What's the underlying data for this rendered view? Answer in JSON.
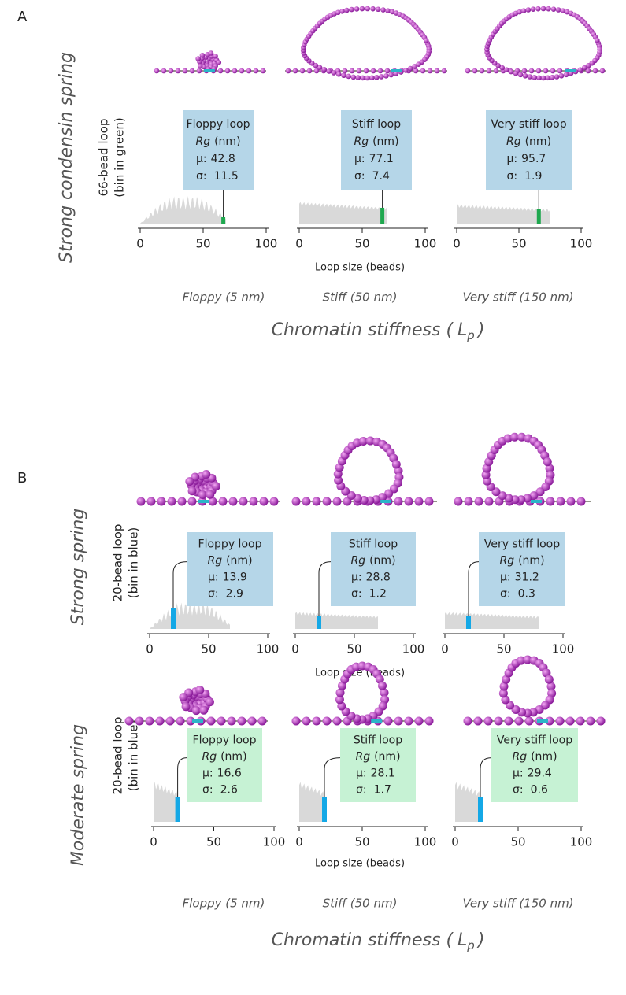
{
  "panels": [
    {
      "label": "A",
      "rows": [
        {
          "title": "Strong condensin spring",
          "y_label": [
            "66-bead loop",
            "(bin in green)"
          ],
          "x_label": "Loop size (beads)",
          "bin": 66,
          "bin_color": "#1fa84f",
          "box_color": "#b5d6e8",
          "columns": [
            {
              "box_title": "Floppy loop",
              "rg_symbol": "Rg",
              "rg_unit": "(nm)",
              "mu_symbol": "μ:",
              "mu": 42.8,
              "sigma_symbol": "σ:",
              "sigma": 11.5,
              "xlim": [
                0,
                100
              ],
              "xticks": [
                0,
                50,
                100
              ]
            },
            {
              "box_title": "Stiff loop",
              "rg_symbol": "Rg",
              "rg_unit": "(nm)",
              "mu_symbol": "μ:",
              "mu": 77.1,
              "sigma_symbol": "σ:",
              "sigma": 7.4,
              "xlim": [
                0,
                100
              ],
              "xticks": [
                0,
                50,
                100
              ]
            },
            {
              "box_title": "Very stiff loop",
              "rg_symbol": "Rg",
              "rg_unit": "(nm)",
              "mu_symbol": "μ:",
              "mu": 95.7,
              "sigma_symbol": "σ:",
              "sigma": 1.9,
              "xlim": [
                0,
                100
              ],
              "xticks": [
                0,
                50,
                100
              ]
            }
          ]
        }
      ],
      "stiffness_labels": [
        "Floppy (5 nm)",
        "Stiff (50 nm)",
        "Very stiff (150 nm)"
      ],
      "axis_title": {
        "text": "Chromatin stiffness (",
        "symbol": "L",
        "subscript": "p",
        "close": ")"
      }
    },
    {
      "label": "B",
      "rows": [
        {
          "title": "Strong spring",
          "y_label": [
            "20-bead loop",
            "(bin in blue)"
          ],
          "x_label": "Loop size (beads)",
          "bin": 20,
          "bin_color": "#14a8e6",
          "box_color": "#b5d6e8",
          "columns": [
            {
              "box_title": "Floppy loop",
              "rg_symbol": "Rg",
              "rg_unit": "(nm)",
              "mu_symbol": "μ:",
              "mu": 13.9,
              "sigma_symbol": "σ:",
              "sigma": 2.9,
              "xlim": [
                0,
                100
              ],
              "xticks": [
                0,
                50,
                100
              ]
            },
            {
              "box_title": "Stiff loop",
              "rg_symbol": "Rg",
              "rg_unit": "(nm)",
              "mu_symbol": "μ:",
              "mu": 28.8,
              "sigma_symbol": "σ:",
              "sigma": 1.2,
              "xlim": [
                0,
                100
              ],
              "xticks": [
                0,
                50,
                100
              ]
            },
            {
              "box_title": "Very stiff loop",
              "rg_symbol": "Rg",
              "rg_unit": "(nm)",
              "mu_symbol": "μ:",
              "mu": 31.2,
              "sigma_symbol": "σ:",
              "sigma": 0.3,
              "xlim": [
                0,
                100
              ],
              "xticks": [
                0,
                50,
                100
              ]
            }
          ]
        },
        {
          "title": "Moderate spring",
          "y_label": [
            "20-bead loop",
            "(bin in blue)"
          ],
          "x_label": "Loop size (beads)",
          "bin": 20,
          "bin_color": "#14a8e6",
          "box_color": "#c6f2d4",
          "columns": [
            {
              "box_title": "Floppy loop",
              "rg_symbol": "Rg",
              "rg_unit": "(nm)",
              "mu_symbol": "μ:",
              "mu": 16.6,
              "sigma_symbol": "σ:",
              "sigma": 2.6,
              "xlim": [
                0,
                100
              ],
              "xticks": [
                0,
                50,
                100
              ]
            },
            {
              "box_title": "Stiff loop",
              "rg_symbol": "Rg",
              "rg_unit": "(nm)",
              "mu_symbol": "μ:",
              "mu": 28.1,
              "sigma_symbol": "σ:",
              "sigma": 1.7,
              "xlim": [
                0,
                100
              ],
              "xticks": [
                0,
                50,
                100
              ]
            },
            {
              "box_title": "Very stiff loop",
              "rg_symbol": "Rg",
              "rg_unit": "(nm)",
              "mu_symbol": "μ:",
              "mu": 29.4,
              "sigma_symbol": "σ:",
              "sigma": 0.6,
              "xlim": [
                0,
                100
              ],
              "xticks": [
                0,
                50,
                100
              ]
            }
          ]
        }
      ],
      "stiffness_labels": [
        "Floppy (5 nm)",
        "Stiff (50 nm)",
        "Very stiff (150 nm)"
      ],
      "axis_title": {
        "text": "Chromatin stiffness (",
        "symbol": "L",
        "subscript": "p",
        "close": ")"
      }
    }
  ]
}
